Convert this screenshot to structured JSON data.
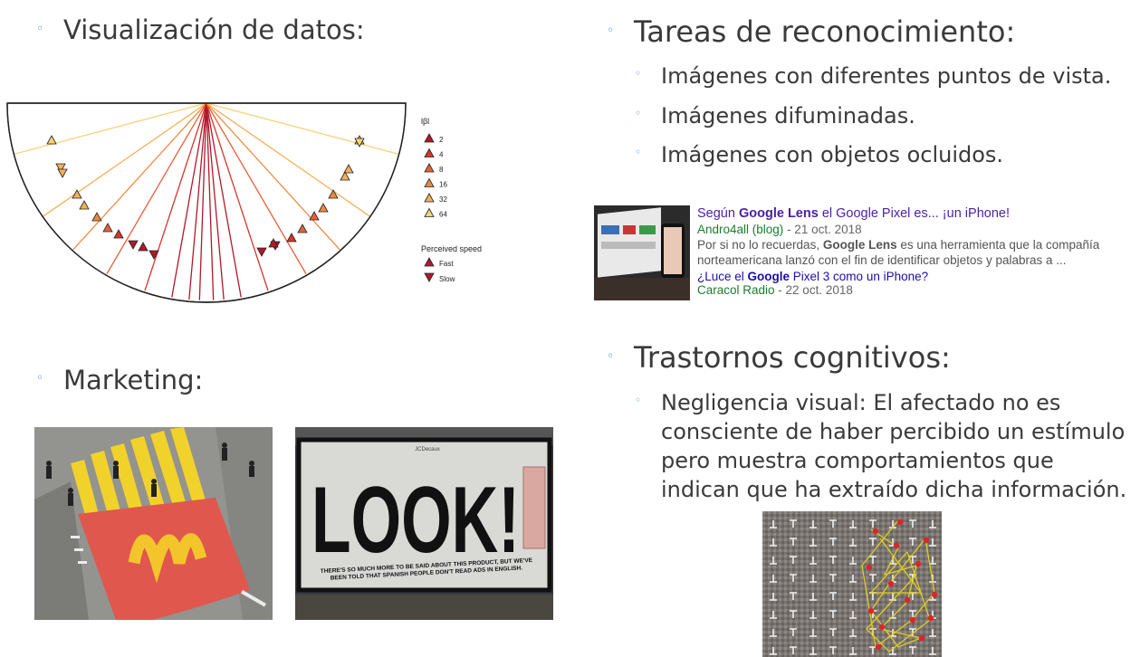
{
  "left": {
    "section1": {
      "heading": "Visualización de datos:"
    },
    "chart_legend": {
      "size_title": "lβl",
      "sizes": [
        "2",
        "4",
        "8",
        "16",
        "32",
        "64"
      ],
      "speed_title": "Perceived speed",
      "speed_items": [
        "Fast",
        "Slow"
      ]
    },
    "section2": {
      "heading": "Marketing:"
    },
    "billboard": {
      "big_text": "LOOK!",
      "tiny_text_line1": "THERE'S SO MUCH MORE TO BE SAID ABOUT THIS PRODUCT, BUT WE'VE",
      "tiny_text_line2": "BEEN TOLD THAT SPANISH PEOPLE DON'T READ ADS IN ENGLISH.",
      "brand": "JCDecaux"
    }
  },
  "right": {
    "section1": {
      "heading": "Tareas de reconocimiento:",
      "items": [
        "Imágenes con diferentes puntos de vista.",
        "Imágenes difuminadas.",
        "Imágenes con objetos ocluidos."
      ]
    },
    "news": {
      "title_pre": "Según ",
      "title_bold": "Google Lens",
      "title_post": " el Google Pixel es... ¡un iPhone!",
      "source1": "Andro4all (blog)",
      "date1": " - 21 oct. 2018",
      "snippet1_pre": "Por si no lo recuerdas, ",
      "snippet1_bold": "Google Lens",
      "snippet1_post": " es una herramienta que la compañía",
      "snippet2": "norteamericana lanzó con el fin de identificar objetos y palabras a ...",
      "link_pre": "¿Luce el ",
      "link_bold": "Google",
      "link_post": " Pixel 3 como un iPhone?",
      "source2": "Caracol Radio",
      "date2": " - 22 oct. 2018"
    },
    "section2": {
      "heading": "Trastornos cognitivos:",
      "paragraph_lines": [
        "Negligencia visual: El afectado no es",
        "consciente de haber percibido un estímulo",
        "pero muestra comportamientos que",
        "indican que ha extraído dicha información."
      ]
    }
  },
  "colors": {
    "bullet": "#4a90c8",
    "text": "#3a3a3a",
    "news_title": "#4b1fa5",
    "news_source": "#1a7d30",
    "palette": [
      "#b2182b",
      "#d6362a",
      "#e8603a",
      "#f08a3f",
      "#f4b05a",
      "#f8d27a"
    ]
  }
}
